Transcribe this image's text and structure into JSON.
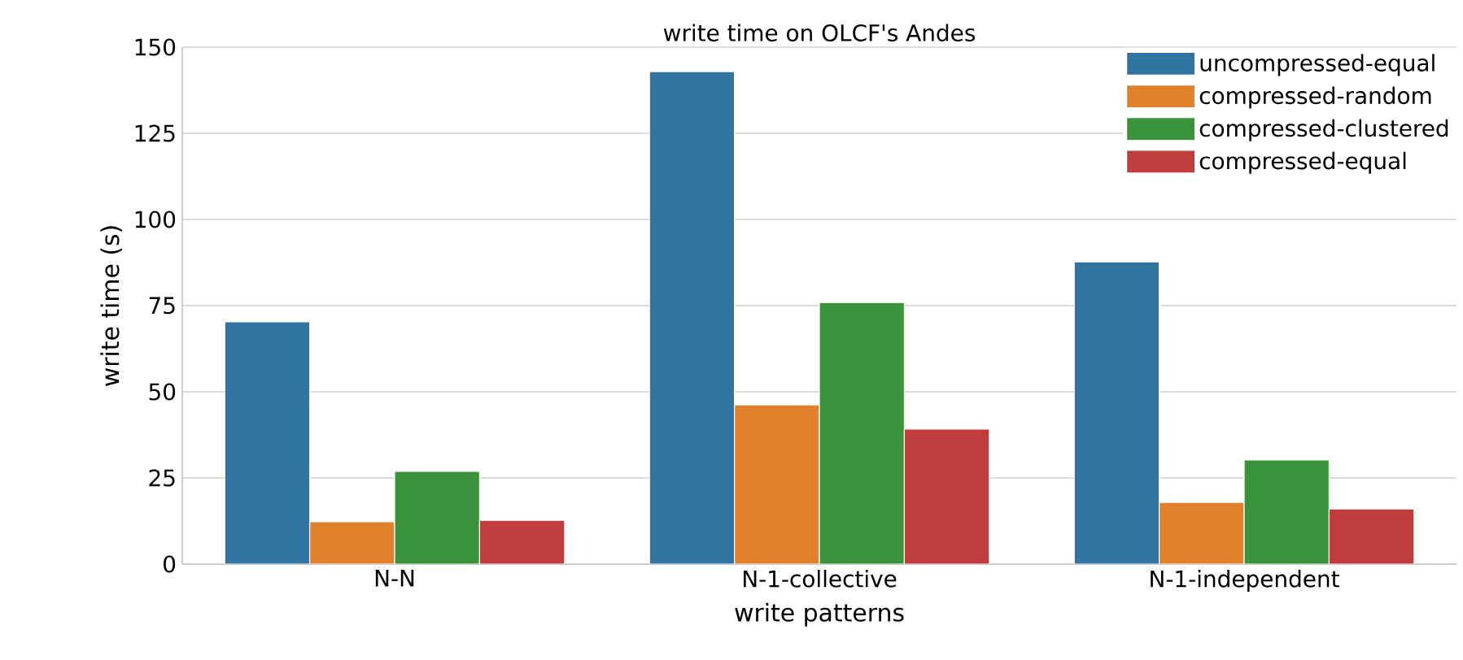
{
  "chart_data": {
    "type": "bar",
    "title": "write time on OLCF's Andes",
    "xlabel": "write patterns",
    "ylabel": "write time (s)",
    "categories": [
      "N-N",
      "N-1-collective",
      "N-1-independent"
    ],
    "series": [
      {
        "name": "uncompressed-equal",
        "color": "#3274a1",
        "values": [
          70.3,
          142.9,
          87.7
        ]
      },
      {
        "name": "compressed-random",
        "color": "#e1812c",
        "values": [
          12.3,
          46.2,
          17.9
        ]
      },
      {
        "name": "compressed-clustered",
        "color": "#3a923a",
        "values": [
          26.9,
          75.9,
          30.2
        ]
      },
      {
        "name": "compressed-equal",
        "color": "#c03d3e",
        "values": [
          12.7,
          39.2,
          16.0
        ]
      }
    ],
    "ylim": [
      0,
      150
    ],
    "yticks": [
      0,
      25,
      50,
      75,
      100,
      125,
      150
    ],
    "grid": "y",
    "legend": "top right"
  }
}
